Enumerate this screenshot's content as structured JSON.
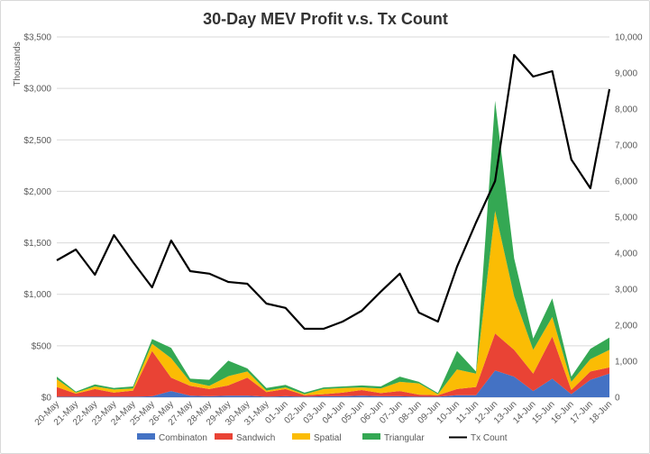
{
  "chart_data": {
    "type": "area",
    "title": "30-Day MEV Profit v.s. Tx Count",
    "y_unit_label": "Thousands",
    "categories": [
      "20-May",
      "21-May",
      "22-May",
      "23-May",
      "24-May",
      "25-May",
      "26-May",
      "27-May",
      "28-May",
      "29-May",
      "30-May",
      "31-May",
      "01-Jun",
      "02-Jun",
      "03-Jun",
      "04-Jun",
      "05-Jun",
      "06-Jun",
      "07-Jun",
      "08-Jun",
      "09-Jun",
      "10-Jun",
      "11-Jun",
      "12-Jun",
      "13-Jun",
      "14-Jun",
      "15-Jun",
      "16-Jun",
      "17-Jun",
      "18-Jun"
    ],
    "left_axis": {
      "min": 0,
      "max": 3500,
      "step": 500,
      "tick_labels": [
        "$0",
        "$500",
        "$1,000",
        "$1,500",
        "$2,000",
        "$2,500",
        "$3,000",
        "$3,500"
      ]
    },
    "right_axis": {
      "min": 0,
      "max": 10000,
      "step": 1000,
      "tick_labels": [
        "0",
        "1,000",
        "2,000",
        "3,000",
        "4,000",
        "5,000",
        "6,000",
        "7,000",
        "8,000",
        "9,000",
        "10,000"
      ]
    },
    "series": [
      {
        "name": "Combinaton",
        "type": "stacked-area",
        "axis": "left",
        "color": "#4472C4",
        "values": [
          5,
          5,
          5,
          5,
          5,
          10,
          60,
          15,
          10,
          15,
          15,
          5,
          10,
          5,
          10,
          10,
          15,
          10,
          10,
          5,
          5,
          20,
          20,
          260,
          200,
          60,
          180,
          30,
          170,
          230
        ]
      },
      {
        "name": "Sandwich",
        "type": "stacked-area",
        "axis": "left",
        "color": "#E94335",
        "values": [
          95,
          30,
          75,
          40,
          60,
          440,
          130,
          95,
          70,
          100,
          175,
          45,
          70,
          15,
          20,
          35,
          55,
          30,
          50,
          20,
          15,
          60,
          80,
          360,
          260,
          170,
          410,
          40,
          80,
          60
        ]
      },
      {
        "name": "Spatial",
        "type": "stacked-area",
        "axis": "left",
        "color": "#FBBC04",
        "values": [
          75,
          10,
          25,
          30,
          20,
          70,
          190,
          40,
          30,
          90,
          60,
          15,
          15,
          10,
          50,
          45,
          25,
          45,
          90,
          110,
          10,
          190,
          130,
          1190,
          520,
          230,
          190,
          80,
          120,
          170
        ]
      },
      {
        "name": "Triangular",
        "type": "stacked-area",
        "axis": "left",
        "color": "#34A853",
        "values": [
          25,
          10,
          20,
          15,
          20,
          45,
          100,
          30,
          60,
          150,
          30,
          25,
          25,
          15,
          15,
          15,
          20,
          20,
          50,
          15,
          10,
          180,
          20,
          1070,
          370,
          110,
          180,
          50,
          100,
          120
        ]
      },
      {
        "name": "Tx Count",
        "type": "line",
        "axis": "right",
        "color": "#000000",
        "values": [
          3800,
          4100,
          3400,
          4500,
          3750,
          3050,
          4350,
          3500,
          3430,
          3200,
          3150,
          2600,
          2480,
          1900,
          1900,
          2100,
          2400,
          2930,
          3430,
          2350,
          2100,
          3620,
          4850,
          6000,
          9500,
          8900,
          9050,
          6600,
          5800,
          8550
        ]
      }
    ],
    "legend_position": "bottom",
    "grid": true
  }
}
